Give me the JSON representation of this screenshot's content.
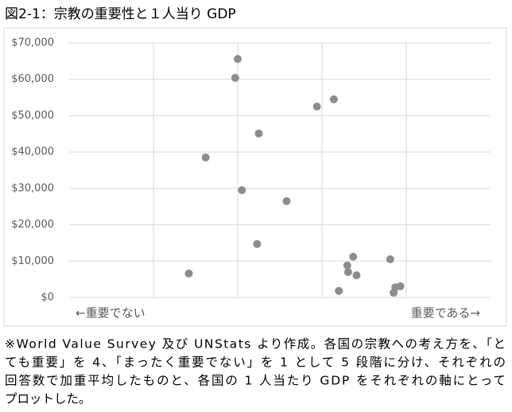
{
  "chart_data": {
    "type": "scatter",
    "title": "図2-1：宗教の重要性と１人当り GDP",
    "x_label_left": "←重要でない",
    "x_label_right": "重要である→",
    "x": [
      2.0,
      1.97,
      2.94,
      3.14,
      2.25,
      1.62,
      2.05,
      2.58,
      2.23,
      1.42,
      3.37,
      3.3,
      3.31,
      3.41,
      3.2,
      3.81,
      3.87,
      3.93,
      3.85
    ],
    "values": [
      65600,
      60400,
      52500,
      54500,
      45100,
      38500,
      29500,
      26500,
      14700,
      6600,
      11200,
      8800,
      7000,
      6100,
      1800,
      10500,
      2800,
      3100,
      1300
    ],
    "color": "#8c8c8c",
    "xlim": [
      0,
      5
    ],
    "xticks": [
      1,
      2,
      3,
      4
    ],
    "ylim": [
      0,
      70000
    ],
    "yticks": [
      {
        "value": 0,
        "label": "$0"
      },
      {
        "value": 10000,
        "label": "$10,000"
      },
      {
        "value": 20000,
        "label": "$20,000"
      },
      {
        "value": 30000,
        "label": "$30,000"
      },
      {
        "value": 40000,
        "label": "$40,000"
      },
      {
        "value": 50000,
        "label": "$50,000"
      },
      {
        "value": 60000,
        "label": "$60,000"
      },
      {
        "value": 70000,
        "label": "$70,000"
      }
    ],
    "grid": true,
    "note": [
      "※World Value Survey 及び UNStats より作成。各国の宗教への考え方を、「と",
      "ても重要」を 4、「まったく重要でない」を 1 として 5 段階に分け、それぞれの",
      "回答数で加重平均したものと、各国の 1 人当たり GDP をそれぞれの軸にとって",
      "プロットした。"
    ]
  }
}
